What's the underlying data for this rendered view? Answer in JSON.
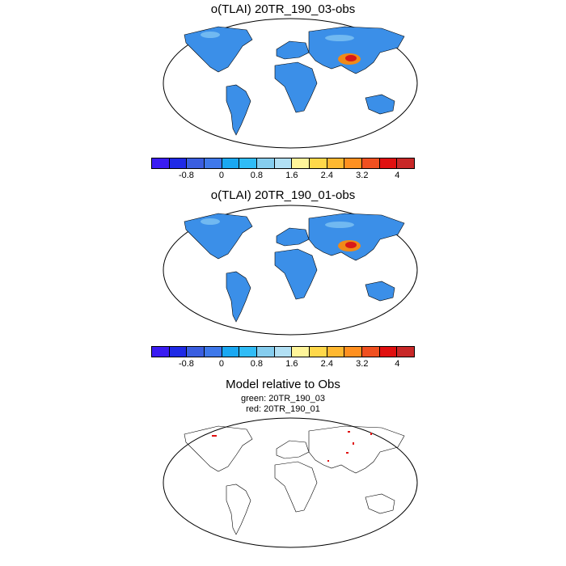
{
  "panels": [
    {
      "title": "o(TLAI) 20TR_190_03-obs"
    },
    {
      "title": "o(TLAI) 20TR_190_01-obs"
    },
    {
      "title": "Model relative to Obs",
      "subtitle_lines": [
        "green: 20TR_190_03",
        "red: 20TR_190_01"
      ]
    }
  ],
  "colorbar": {
    "colors": [
      "#3a1cf2",
      "#1f2ae6",
      "#3a5ee0",
      "#3e78ea",
      "#1aa8f2",
      "#30bcf6",
      "#86cdee",
      "#b2e0f4",
      "#fff59a",
      "#ffd84a",
      "#ffb830",
      "#ff9020",
      "#f05020",
      "#e01010",
      "#c82828"
    ],
    "labels": [
      "-0.8",
      "0",
      "0.8",
      "1.6",
      "2.4",
      "3.2",
      "4"
    ]
  },
  "colors": {
    "land": "#3b8fe8",
    "land_light": "#7fc3f2",
    "hotspot": "#f08a18",
    "hotspot_core": "#d81818",
    "coast": "#000000",
    "red_marker": "#e01010"
  }
}
